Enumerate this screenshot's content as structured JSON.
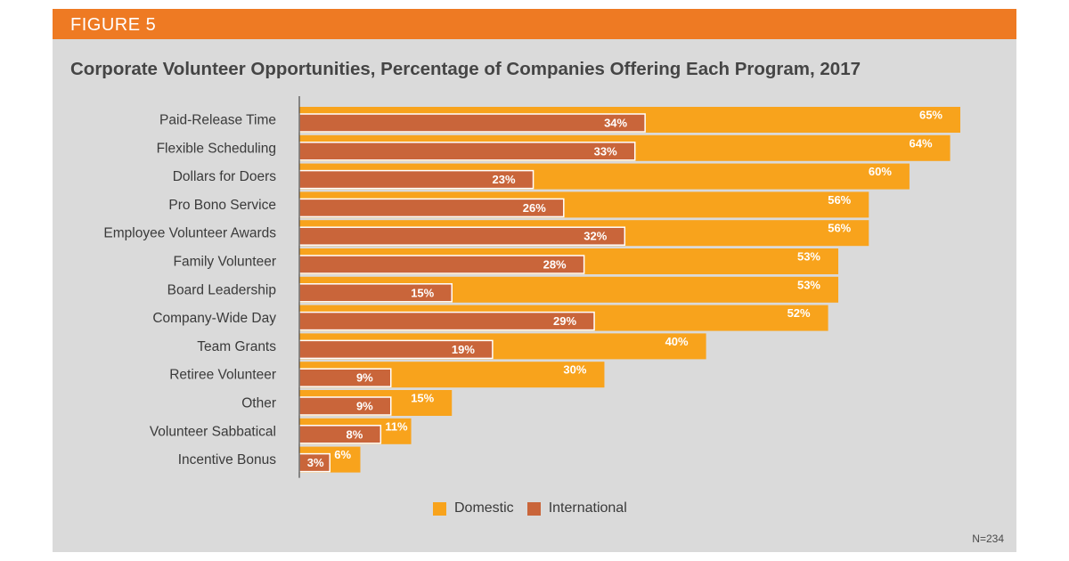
{
  "figure_label": "FIGURE 5",
  "footnote": "N=234",
  "colors": {
    "domestic": "#f8a31c",
    "international": "#c9653a",
    "banner": "#ee7a23",
    "background": "#dadada"
  },
  "chart_data": {
    "type": "bar",
    "orientation": "horizontal",
    "title": "Corporate Volunteer Opportunities, Percentage of Companies Offering Each Program, 2017",
    "categories": [
      "Paid-Release Time",
      "Flexible Scheduling",
      "Dollars for Doers",
      "Pro Bono Service",
      "Employee Volunteer Awards",
      "Family Volunteer",
      "Board Leadership",
      "Company-Wide Day",
      "Team Grants",
      "Retiree Volunteer",
      "Other",
      "Volunteer Sabbatical",
      "Incentive Bonus"
    ],
    "series": [
      {
        "name": "Domestic",
        "values": [
          65,
          64,
          60,
          56,
          56,
          53,
          53,
          52,
          40,
          30,
          15,
          11,
          6
        ]
      },
      {
        "name": "International",
        "values": [
          34,
          33,
          23,
          26,
          32,
          28,
          15,
          29,
          19,
          9,
          9,
          8,
          3
        ]
      }
    ],
    "value_suffix": "%",
    "xlim": [
      0,
      65
    ],
    "grid": false,
    "legend_position": "bottom-center"
  }
}
